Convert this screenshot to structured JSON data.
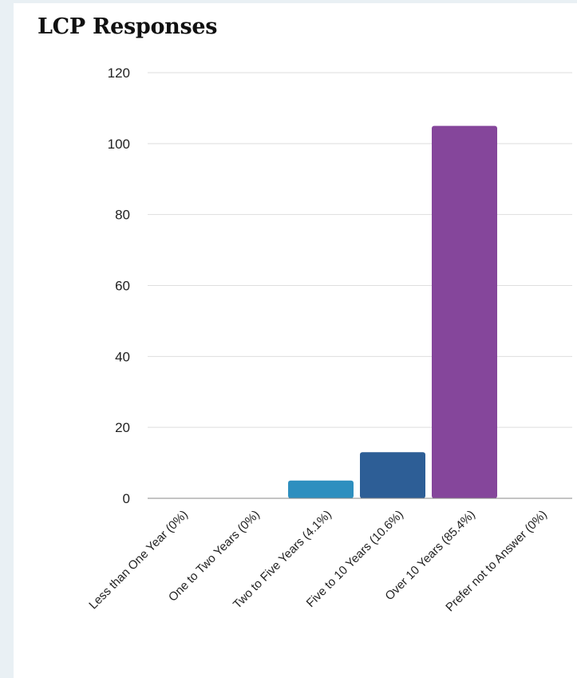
{
  "chart_data": {
    "type": "bar",
    "title": "LCP Responses",
    "xlabel": "",
    "ylabel": "",
    "ylim": [
      0,
      120
    ],
    "yticks": [
      0,
      20,
      40,
      60,
      80,
      100,
      120
    ],
    "categories": [
      "Less than One Year (0%)",
      "One to Two Years (0%)",
      "Two to Five Years (4.1%)",
      "Five to 10 Years (10.6%)",
      "Over 10 Years (85.4%)",
      "Prefer not to Answer (0%)"
    ],
    "values": [
      0,
      0,
      5,
      13,
      105,
      0
    ],
    "colors": [
      "#2e8fbf",
      "#2e8fbf",
      "#2e8fbf",
      "#2d5e96",
      "#85469b",
      "#85469b"
    ],
    "grid": true,
    "legend": "none"
  }
}
